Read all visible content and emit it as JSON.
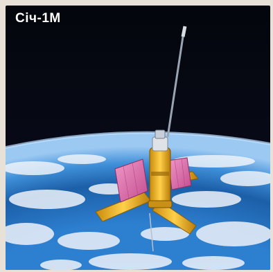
{
  "title": "Січ-1М",
  "colors": {
    "space": "#05070f",
    "ocean": "#1b5fa8",
    "clouds": "#eef3fa",
    "solar_panel": "#d85fa2",
    "satellite_body": "#f0b21c"
  }
}
